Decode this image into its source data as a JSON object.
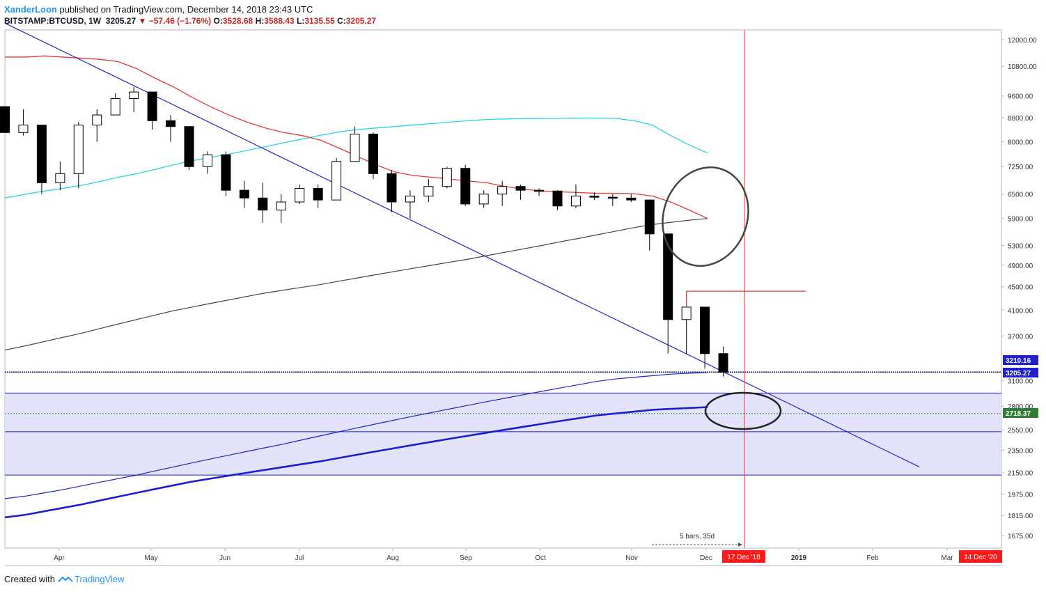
{
  "header": {
    "author": "XanderLoon",
    "published": "published on TradingView.com, December 14, 2018 23:43 UTC"
  },
  "ohlc": {
    "symbol": "BITSTAMP:BTCUSD, 1W",
    "last": "3205.27",
    "change": "−57.46 (−1.76%)",
    "o_label": "O:",
    "o": "3528.68",
    "h_label": "H:",
    "h": "3588.43",
    "l_label": "L:",
    "l": "3135.55",
    "c_label": "C:",
    "c": "3205.27"
  },
  "footer": {
    "created_with": "Created with",
    "brand": "TradingView"
  },
  "colors": {
    "up_candle": "#ffffff",
    "down_candle": "#000000",
    "ma_red": "#e53935",
    "ma_cyan": "#26d4e8",
    "ma_dark": "#37474f",
    "blue": "#1e22c8",
    "zone_fill": "#e3e3fb",
    "label_blue": "#1f1fcc",
    "label_red": "#ff1a1a",
    "price_line_dotted": "#1a237e",
    "green_dotted": "#2e7d32"
  },
  "chart_data": {
    "type": "candlestick",
    "scale": "log",
    "y_ticks": [
      "12000.00",
      "10800.00",
      "9600.00",
      "8800.00",
      "8000.00",
      "7250.00",
      "6500.00",
      "5900.00",
      "5300.00",
      "4900.00",
      "4500.00",
      "4100.00",
      "3700.00",
      "3100.00",
      "2800.00",
      "2550.00",
      "2350.00",
      "2150.00",
      "1975.00",
      "1815.00",
      "1675.00"
    ],
    "x_labels": [
      "Apr",
      "May",
      "Jun",
      "Jul",
      "Aug",
      "Sep",
      "Oct",
      "Nov",
      "Dec",
      "2019",
      "Feb",
      "Mar"
    ],
    "price_labels": [
      {
        "text": "3210.16",
        "color": "#1f1fcc"
      },
      {
        "text": "3205.27",
        "color": "#1f1fcc"
      },
      {
        "text": "2718.37",
        "color": "#ffffff"
      }
    ],
    "time_labels": [
      {
        "text": "17 Dec '18",
        "color": "#ff1a1a"
      },
      {
        "text": "14 Dec '20",
        "color": "#ff1a1a"
      }
    ],
    "annotation": "5 bars, 35d",
    "candles": [
      {
        "o": 9200,
        "h": 9200,
        "l": 8300,
        "c": 8300
      },
      {
        "o": 8300,
        "h": 9100,
        "l": 8200,
        "c": 8550
      },
      {
        "o": 8550,
        "h": 8550,
        "l": 6500,
        "c": 6800
      },
      {
        "o": 6800,
        "h": 7400,
        "l": 6600,
        "c": 7050
      },
      {
        "o": 7050,
        "h": 8650,
        "l": 6650,
        "c": 8550
      },
      {
        "o": 8550,
        "h": 9100,
        "l": 8000,
        "c": 8900
      },
      {
        "o": 8900,
        "h": 9700,
        "l": 8900,
        "c": 9500
      },
      {
        "o": 9500,
        "h": 9950,
        "l": 9000,
        "c": 9750
      },
      {
        "o": 9750,
        "h": 9750,
        "l": 8400,
        "c": 8700
      },
      {
        "o": 8700,
        "h": 8900,
        "l": 8000,
        "c": 8500
      },
      {
        "o": 8500,
        "h": 8500,
        "l": 7150,
        "c": 7250
      },
      {
        "o": 7250,
        "h": 7700,
        "l": 7050,
        "c": 7600
      },
      {
        "o": 7600,
        "h": 7700,
        "l": 6450,
        "c": 6600
      },
      {
        "o": 6600,
        "h": 6850,
        "l": 6150,
        "c": 6400
      },
      {
        "o": 6400,
        "h": 6800,
        "l": 5800,
        "c": 6100
      },
      {
        "o": 6100,
        "h": 6500,
        "l": 5800,
        "c": 6300
      },
      {
        "o": 6300,
        "h": 6750,
        "l": 6250,
        "c": 6650
      },
      {
        "o": 6650,
        "h": 6750,
        "l": 6150,
        "c": 6350
      },
      {
        "o": 6350,
        "h": 7500,
        "l": 6350,
        "c": 7400
      },
      {
        "o": 7400,
        "h": 8500,
        "l": 7400,
        "c": 8250
      },
      {
        "o": 8250,
        "h": 8300,
        "l": 6900,
        "c": 7050
      },
      {
        "o": 7050,
        "h": 7150,
        "l": 6050,
        "c": 6300
      },
      {
        "o": 6300,
        "h": 6600,
        "l": 5900,
        "c": 6450
      },
      {
        "o": 6450,
        "h": 6900,
        "l": 6300,
        "c": 6700
      },
      {
        "o": 6700,
        "h": 7250,
        "l": 6650,
        "c": 7200
      },
      {
        "o": 7200,
        "h": 7300,
        "l": 6200,
        "c": 6250
      },
      {
        "o": 6250,
        "h": 6600,
        "l": 6150,
        "c": 6500
      },
      {
        "o": 6500,
        "h": 6850,
        "l": 6200,
        "c": 6700
      },
      {
        "o": 6700,
        "h": 6750,
        "l": 6350,
        "c": 6600
      },
      {
        "o": 6600,
        "h": 6650,
        "l": 6450,
        "c": 6580
      },
      {
        "o": 6580,
        "h": 6600,
        "l": 6100,
        "c": 6200
      },
      {
        "o": 6200,
        "h": 6750,
        "l": 6150,
        "c": 6450
      },
      {
        "o": 6450,
        "h": 6550,
        "l": 6350,
        "c": 6420
      },
      {
        "o": 6420,
        "h": 6500,
        "l": 6200,
        "c": 6400
      },
      {
        "o": 6400,
        "h": 6500,
        "l": 6300,
        "c": 6350
      },
      {
        "o": 6350,
        "h": 6350,
        "l": 5200,
        "c": 5550
      },
      {
        "o": 5550,
        "h": 5550,
        "l": 3450,
        "c": 3950
      },
      {
        "o": 3950,
        "h": 4400,
        "l": 3450,
        "c": 4150
      },
      {
        "o": 4150,
        "h": 4150,
        "l": 3250,
        "c": 3450
      },
      {
        "o": 3450,
        "h": 3550,
        "l": 3150,
        "c": 3205
      }
    ],
    "ma_red": [
      11200,
      11200,
      11250,
      11200,
      11150,
      11100,
      11000,
      10700,
      10300,
      9950,
      9550,
      9200,
      8900,
      8650,
      8450,
      8300,
      8200,
      8050,
      7800,
      7550,
      7300,
      7100,
      7000,
      6950,
      6900,
      6850,
      6800,
      6700,
      6630,
      6580,
      6560,
      6540,
      6520,
      6520,
      6510,
      6450,
      6300,
      6100,
      5900
    ],
    "ma_cyan": [
      6400,
      6500,
      6580,
      6650,
      6730,
      6830,
      6950,
      7050,
      7170,
      7300,
      7420,
      7520,
      7620,
      7730,
      7850,
      7970,
      8090,
      8210,
      8320,
      8400,
      8450,
      8500,
      8550,
      8600,
      8650,
      8700,
      8740,
      8760,
      8770,
      8780,
      8780,
      8790,
      8790,
      8780,
      8700,
      8550,
      8200,
      7900,
      7650
    ],
    "ma_dark": [
      3500,
      3560,
      3620,
      3680,
      3740,
      3810,
      3880,
      3950,
      4020,
      4090,
      4150,
      4210,
      4270,
      4330,
      4390,
      4440,
      4490,
      4540,
      4600,
      4660,
      4720,
      4780,
      4840,
      4900,
      4960,
      5020,
      5090,
      5160,
      5230,
      5300,
      5380,
      5450,
      5530,
      5610,
      5690,
      5760,
      5810,
      5860,
      5900
    ],
    "ma_blue_thin": [
      1940,
      1960,
      1985,
      2010,
      2040,
      2070,
      2100,
      2130,
      2165,
      2200,
      2235,
      2270,
      2305,
      2340,
      2375,
      2410,
      2450,
      2490,
      2530,
      2570,
      2610,
      2650,
      2690,
      2730,
      2770,
      2810,
      2850,
      2890,
      2930,
      2970,
      3010,
      3050,
      3090,
      3120,
      3140,
      3160,
      3180,
      3190,
      3200
    ],
    "ma_blue_thick": [
      1800,
      1820,
      1845,
      1870,
      1895,
      1925,
      1955,
      1985,
      2015,
      2045,
      2075,
      2100,
      2125,
      2150,
      2175,
      2200,
      2225,
      2250,
      2280,
      2310,
      2340,
      2370,
      2400,
      2430,
      2460,
      2490,
      2520,
      2550,
      2580,
      2610,
      2640,
      2670,
      2700,
      2720,
      2740,
      2760,
      2770,
      2780,
      2790
    ],
    "trendline": {
      "from": [
        0,
        12800
      ],
      "to": [
        49.5,
        2200
      ]
    },
    "zone": {
      "top": 2950,
      "mid": 2530,
      "bottom": 2130
    },
    "hline_red": {
      "x_from": 37.0,
      "x_to": 42.0,
      "value": 4420
    },
    "vline_time_index": 40.0,
    "green_level": 2718.37,
    "price_line": 3205.27
  }
}
